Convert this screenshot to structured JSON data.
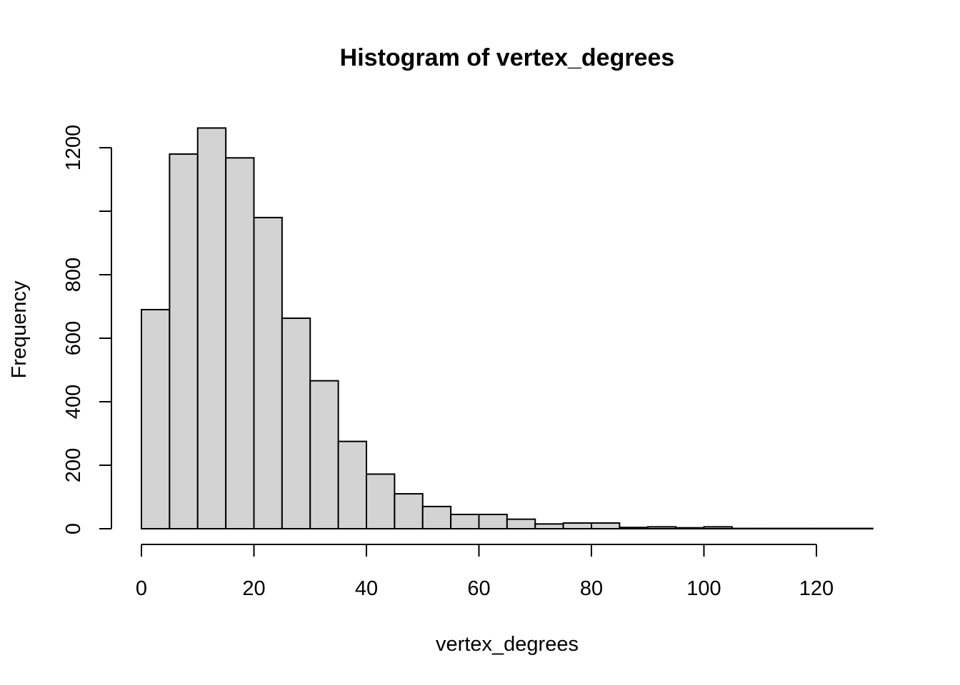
{
  "chart_data": {
    "type": "bar",
    "title": "Histogram of vertex_degrees",
    "xlabel": "vertex_degrees",
    "ylabel": "Frequency",
    "xlim": [
      0,
      130
    ],
    "ylim": [
      0,
      1200
    ],
    "x_ticks": [
      0,
      20,
      40,
      60,
      80,
      100,
      120
    ],
    "y_ticks": [
      0,
      200,
      400,
      600,
      800,
      1000,
      1200
    ],
    "y_tick_labels": [
      "0",
      "200",
      "400",
      "600",
      "800",
      "",
      "1200"
    ],
    "bin_width": 5,
    "bins": [
      {
        "start": 0,
        "end": 5,
        "count": 690
      },
      {
        "start": 5,
        "end": 10,
        "count": 1180
      },
      {
        "start": 10,
        "end": 15,
        "count": 1262
      },
      {
        "start": 15,
        "end": 20,
        "count": 1168
      },
      {
        "start": 20,
        "end": 25,
        "count": 980
      },
      {
        "start": 25,
        "end": 30,
        "count": 663
      },
      {
        "start": 30,
        "end": 35,
        "count": 466
      },
      {
        "start": 35,
        "end": 40,
        "count": 275
      },
      {
        "start": 40,
        "end": 45,
        "count": 172
      },
      {
        "start": 45,
        "end": 50,
        "count": 110
      },
      {
        "start": 50,
        "end": 55,
        "count": 70
      },
      {
        "start": 55,
        "end": 60,
        "count": 45
      },
      {
        "start": 60,
        "end": 65,
        "count": 45
      },
      {
        "start": 65,
        "end": 70,
        "count": 30
      },
      {
        "start": 70,
        "end": 75,
        "count": 15
      },
      {
        "start": 75,
        "end": 80,
        "count": 18
      },
      {
        "start": 80,
        "end": 85,
        "count": 18
      },
      {
        "start": 85,
        "end": 90,
        "count": 4
      },
      {
        "start": 90,
        "end": 95,
        "count": 6
      },
      {
        "start": 95,
        "end": 100,
        "count": 3
      },
      {
        "start": 100,
        "end": 105,
        "count": 6
      },
      {
        "start": 105,
        "end": 110,
        "count": 1
      },
      {
        "start": 110,
        "end": 115,
        "count": 1
      },
      {
        "start": 115,
        "end": 120,
        "count": 1
      },
      {
        "start": 120,
        "end": 125,
        "count": 1
      },
      {
        "start": 125,
        "end": 130,
        "count": 1
      }
    ],
    "bar_fill": "#d3d3d3",
    "bar_stroke": "#000000",
    "grid": false,
    "legend": "none"
  }
}
